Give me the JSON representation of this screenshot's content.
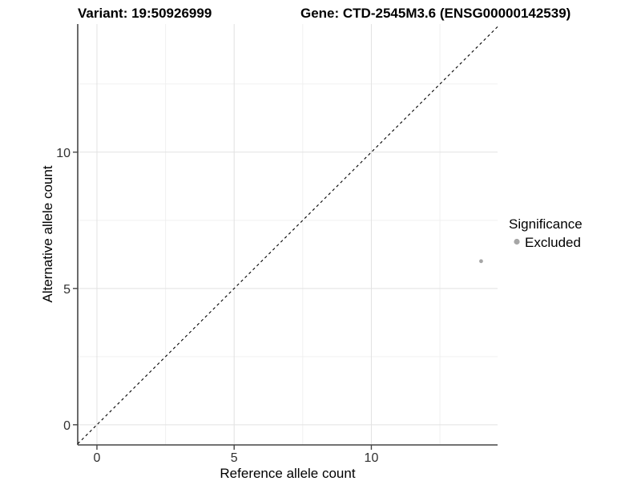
{
  "header": {
    "variant_title": "Variant: 19:50926999",
    "gene_title": "Gene: CTD-2545M3.6 (ENSG00000142539)"
  },
  "legend": {
    "title": "Significance",
    "items": [
      {
        "label": "Excluded",
        "color": "#a6a6a6"
      }
    ]
  },
  "chart_data": {
    "type": "scatter",
    "variant_title": "Variant: 19:50926999",
    "gene_title": "Gene: CTD-2545M3.6 (ENSG00000142539)",
    "xlabel": "Reference allele count",
    "ylabel": "Alternative allele count",
    "xlim": [
      -0.7,
      14.6
    ],
    "ylim": [
      -0.74,
      14.7
    ],
    "x_ticks": [
      0,
      5,
      10
    ],
    "x_tick_labels": [
      "0",
      "5",
      "10"
    ],
    "y_ticks": [
      0,
      5,
      10
    ],
    "y_tick_labels": [
      "0",
      "5",
      "10"
    ],
    "x_grid_minor": [
      2.5,
      7.5,
      12.5
    ],
    "y_grid_minor": [
      2.5,
      7.5,
      12.5
    ],
    "grid": true,
    "legend_position": "right",
    "series": [
      {
        "name": "Excluded",
        "color": "#a6a6a6",
        "points": [
          {
            "x": 14,
            "y": 6
          }
        ]
      }
    ],
    "reference_line": {
      "type": "identity",
      "equation": "y = x",
      "style": "dashed",
      "color": "#000000"
    }
  },
  "colors": {
    "background": "#ffffff",
    "grid_major": "#e2e2e2",
    "grid_minor": "#f0f0f0",
    "spine": "#454545",
    "tick_text": "#303030",
    "point": "#a6a6a6"
  }
}
